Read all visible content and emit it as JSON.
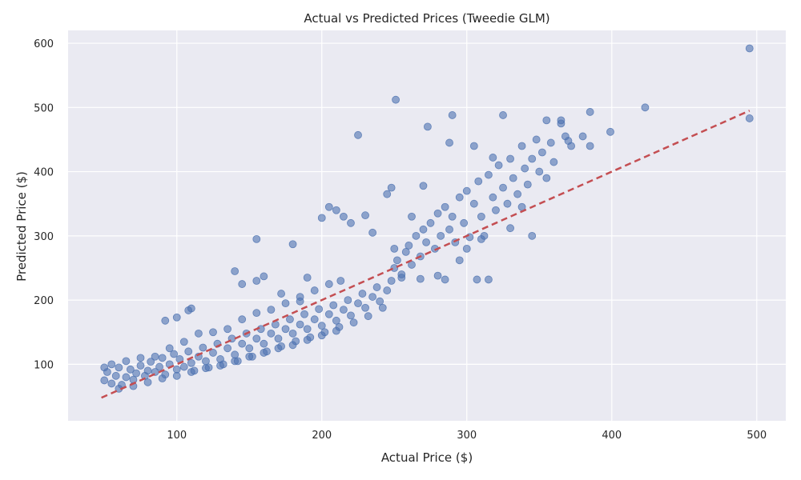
{
  "chart_data": {
    "type": "scatter",
    "title": "Actual vs Predicted Prices (Tweedie GLM)",
    "xlabel": "Actual Price ($)",
    "ylabel": "Predicted Price ($)",
    "xlim": [
      25,
      520
    ],
    "ylim": [
      12,
      620
    ],
    "xticks": [
      100,
      200,
      300,
      400,
      500
    ],
    "yticks": [
      100,
      200,
      300,
      400,
      500,
      600
    ],
    "grid": true,
    "colors": {
      "background": "#eaeaf2",
      "grid": "#ffffff",
      "points": "#4c72b0",
      "reference_line": "#c44e52"
    },
    "reference_line": {
      "style": "dashed",
      "x": [
        48,
        495
      ],
      "y": [
        48,
        495
      ]
    },
    "points": [
      [
        50,
        75
      ],
      [
        52,
        88
      ],
      [
        55,
        70
      ],
      [
        58,
        82
      ],
      [
        60,
        95
      ],
      [
        62,
        68
      ],
      [
        65,
        80
      ],
      [
        68,
        92
      ],
      [
        70,
        76
      ],
      [
        72,
        86
      ],
      [
        75,
        98
      ],
      [
        78,
        82
      ],
      [
        80,
        90
      ],
      [
        82,
        104
      ],
      [
        85,
        88
      ],
      [
        88,
        96
      ],
      [
        90,
        110
      ],
      [
        92,
        84
      ],
      [
        95,
        100
      ],
      [
        98,
        116
      ],
      [
        100,
        92
      ],
      [
        102,
        108
      ],
      [
        105,
        96
      ],
      [
        108,
        120
      ],
      [
        110,
        102
      ],
      [
        112,
        90
      ],
      [
        115,
        112
      ],
      [
        118,
        126
      ],
      [
        120,
        105
      ],
      [
        122,
        95
      ],
      [
        125,
        118
      ],
      [
        128,
        132
      ],
      [
        130,
        108
      ],
      [
        132,
        100
      ],
      [
        135,
        125
      ],
      [
        138,
        140
      ],
      [
        140,
        115
      ],
      [
        142,
        105
      ],
      [
        145,
        132
      ],
      [
        148,
        148
      ],
      [
        150,
        125
      ],
      [
        152,
        112
      ],
      [
        155,
        140
      ],
      [
        158,
        155
      ],
      [
        160,
        132
      ],
      [
        162,
        120
      ],
      [
        165,
        148
      ],
      [
        168,
        162
      ],
      [
        170,
        140
      ],
      [
        172,
        128
      ],
      [
        175,
        155
      ],
      [
        178,
        170
      ],
      [
        180,
        148
      ],
      [
        182,
        136
      ],
      [
        185,
        162
      ],
      [
        188,
        178
      ],
      [
        190,
        155
      ],
      [
        192,
        142
      ],
      [
        195,
        170
      ],
      [
        198,
        186
      ],
      [
        200,
        160
      ],
      [
        202,
        150
      ],
      [
        205,
        178
      ],
      [
        208,
        192
      ],
      [
        210,
        168
      ],
      [
        212,
        158
      ],
      [
        215,
        185
      ],
      [
        218,
        200
      ],
      [
        220,
        176
      ],
      [
        222,
        165
      ],
      [
        225,
        195
      ],
      [
        228,
        210
      ],
      [
        230,
        188
      ],
      [
        232,
        175
      ],
      [
        235,
        205
      ],
      [
        238,
        220
      ],
      [
        240,
        198
      ],
      [
        242,
        188
      ],
      [
        245,
        215
      ],
      [
        248,
        230
      ],
      [
        250,
        250
      ],
      [
        252,
        262
      ],
      [
        255,
        240
      ],
      [
        258,
        275
      ],
      [
        260,
        285
      ],
      [
        262,
        255
      ],
      [
        265,
        300
      ],
      [
        268,
        268
      ],
      [
        270,
        310
      ],
      [
        272,
        290
      ],
      [
        275,
        320
      ],
      [
        278,
        280
      ],
      [
        280,
        335
      ],
      [
        282,
        300
      ],
      [
        285,
        345
      ],
      [
        288,
        310
      ],
      [
        290,
        330
      ],
      [
        292,
        290
      ],
      [
        295,
        360
      ],
      [
        298,
        320
      ],
      [
        300,
        370
      ],
      [
        302,
        298
      ],
      [
        305,
        350
      ],
      [
        308,
        385
      ],
      [
        310,
        330
      ],
      [
        312,
        300
      ],
      [
        315,
        395
      ],
      [
        318,
        360
      ],
      [
        320,
        340
      ],
      [
        322,
        410
      ],
      [
        325,
        375
      ],
      [
        328,
        350
      ],
      [
        330,
        420
      ],
      [
        332,
        390
      ],
      [
        335,
        365
      ],
      [
        338,
        440
      ],
      [
        340,
        405
      ],
      [
        342,
        380
      ],
      [
        345,
        420
      ],
      [
        348,
        450
      ],
      [
        350,
        400
      ],
      [
        352,
        430
      ],
      [
        355,
        390
      ],
      [
        358,
        445
      ],
      [
        360,
        415
      ],
      [
        365,
        480
      ],
      [
        368,
        455
      ],
      [
        372,
        440
      ],
      [
        380,
        455
      ],
      [
        385,
        440
      ],
      [
        50,
        95
      ],
      [
        55,
        100
      ],
      [
        60,
        62
      ],
      [
        65,
        105
      ],
      [
        70,
        66
      ],
      [
        75,
        110
      ],
      [
        80,
        72
      ],
      [
        85,
        112
      ],
      [
        90,
        78
      ],
      [
        95,
        125
      ],
      [
        100,
        82
      ],
      [
        105,
        135
      ],
      [
        110,
        88
      ],
      [
        115,
        148
      ],
      [
        120,
        94
      ],
      [
        125,
        150
      ],
      [
        130,
        98
      ],
      [
        135,
        155
      ],
      [
        140,
        105
      ],
      [
        145,
        170
      ],
      [
        150,
        112
      ],
      [
        155,
        180
      ],
      [
        160,
        118
      ],
      [
        165,
        185
      ],
      [
        170,
        125
      ],
      [
        175,
        195
      ],
      [
        180,
        130
      ],
      [
        185,
        205
      ],
      [
        190,
        138
      ],
      [
        195,
        215
      ],
      [
        200,
        145
      ],
      [
        205,
        225
      ],
      [
        210,
        152
      ],
      [
        213,
        230
      ],
      [
        92,
        168
      ],
      [
        100,
        173
      ],
      [
        108,
        184
      ],
      [
        110,
        187
      ],
      [
        140,
        245
      ],
      [
        145,
        225
      ],
      [
        155,
        230
      ],
      [
        155,
        295
      ],
      [
        160,
        237
      ],
      [
        172,
        210
      ],
      [
        180,
        287
      ],
      [
        185,
        198
      ],
      [
        190,
        235
      ],
      [
        200,
        328
      ],
      [
        205,
        345
      ],
      [
        210,
        340
      ],
      [
        215,
        330
      ],
      [
        220,
        320
      ],
      [
        225,
        457
      ],
      [
        230,
        332
      ],
      [
        235,
        305
      ],
      [
        245,
        365
      ],
      [
        248,
        375
      ],
      [
        250,
        280
      ],
      [
        251,
        512
      ],
      [
        255,
        235
      ],
      [
        262,
        330
      ],
      [
        268,
        233
      ],
      [
        270,
        378
      ],
      [
        273,
        470
      ],
      [
        280,
        238
      ],
      [
        285,
        232
      ],
      [
        288,
        445
      ],
      [
        290,
        488
      ],
      [
        295,
        262
      ],
      [
        300,
        280
      ],
      [
        305,
        440
      ],
      [
        307,
        232
      ],
      [
        310,
        295
      ],
      [
        315,
        232
      ],
      [
        318,
        422
      ],
      [
        325,
        488
      ],
      [
        330,
        312
      ],
      [
        338,
        345
      ],
      [
        345,
        300
      ],
      [
        355,
        480
      ],
      [
        365,
        475
      ],
      [
        370,
        448
      ],
      [
        385,
        493
      ],
      [
        399,
        462
      ],
      [
        423,
        500
      ],
      [
        495,
        483
      ],
      [
        495,
        592
      ]
    ]
  }
}
